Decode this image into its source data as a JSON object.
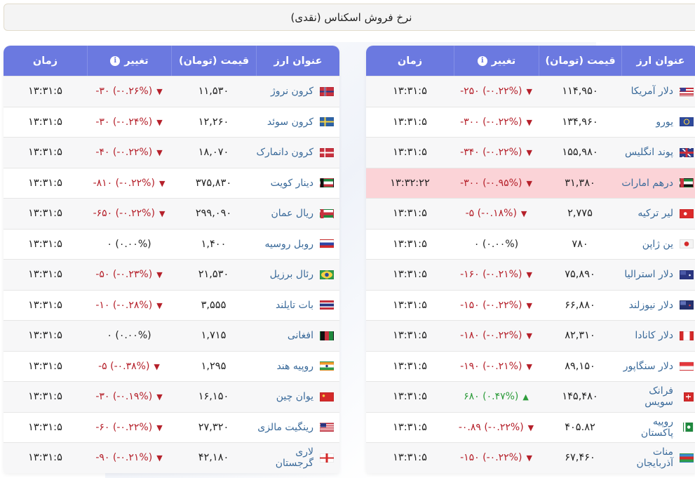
{
  "title": "نرخ فروش اسکناس (نقدی)",
  "colors": {
    "header_bg": "#6b79e0",
    "negative": "#b5202a",
    "positive": "#2e9c3c",
    "highlight_row": "#fbd3d7",
    "name_link": "#3a6a9a"
  },
  "columns": {
    "name": "عنوان ارز",
    "price": "قیمت (تومان)",
    "change": "تغییر",
    "change_icon": "i",
    "time": "زمان"
  },
  "right_table": {
    "rows": [
      {
        "flag": "us",
        "name": "دلار آمریکا",
        "price": "۱۱۴,۹۵۰",
        "change": "-۲۵۰ (-۰.۲۲%)",
        "dir": "neg",
        "time": "۱۳:۳۱:۵"
      },
      {
        "flag": "eu",
        "name": "یورو",
        "price": "۱۳۴,۹۶۰",
        "change": "-۳۰۰ (-۰.۲۲%)",
        "dir": "neg",
        "time": "۱۳:۳۱:۵"
      },
      {
        "flag": "gb",
        "name": "پوند انگلیس",
        "price": "۱۵۵,۹۸۰",
        "change": "-۳۴۰ (-۰.۲۲%)",
        "dir": "neg",
        "time": "۱۳:۳۱:۵"
      },
      {
        "flag": "ae",
        "name": "درهم امارات",
        "price": "۳۱,۳۸۰",
        "change": "-۳۰۰ (-۰.۹۵%)",
        "dir": "neg",
        "time": "۱۳:۳۲:۲۲",
        "highlight": true
      },
      {
        "flag": "tr",
        "name": "لیر ترکیه",
        "price": "۲,۷۷۵",
        "change": "-۵ (-۰.۱۸%)",
        "dir": "neg",
        "time": "۱۳:۳۱:۵"
      },
      {
        "flag": "jp",
        "name": "ین ژاپن",
        "price": "۷۸۰",
        "change": "۰ (۰.۰۰%)",
        "dir": "zero",
        "time": "۱۳:۳۱:۵"
      },
      {
        "flag": "au",
        "name": "دلار استرالیا",
        "price": "۷۵,۸۹۰",
        "change": "-۱۶۰ (-۰.۲۱%)",
        "dir": "neg",
        "time": "۱۳:۳۱:۵"
      },
      {
        "flag": "nz",
        "name": "دلار نیوزلند",
        "price": "۶۶,۸۸۰",
        "change": "-۱۵۰ (-۰.۲۲%)",
        "dir": "neg",
        "time": "۱۳:۳۱:۵"
      },
      {
        "flag": "ca",
        "name": "دلار کانادا",
        "price": "۸۲,۳۱۰",
        "change": "-۱۸۰ (-۰.۲۲%)",
        "dir": "neg",
        "time": "۱۳:۳۱:۵"
      },
      {
        "flag": "sg",
        "name": "دلار سنگاپور",
        "price": "۸۹,۱۵۰",
        "change": "-۱۹۰ (-۰.۲۱%)",
        "dir": "neg",
        "time": "۱۳:۳۱:۵"
      },
      {
        "flag": "ch",
        "name": "فرانک سویس",
        "price": "۱۴۵,۴۸۰",
        "change": "۶۸۰ (۰.۴۷%)",
        "dir": "pos",
        "time": "۱۳:۳۱:۵"
      },
      {
        "flag": "pk",
        "name": "روپیه پاکستان",
        "price": "۴۰۵.۸۲",
        "change": "-۰.۸۹ (-۰.۲۲%)",
        "dir": "neg",
        "time": "۱۳:۳۱:۵"
      },
      {
        "flag": "az",
        "name": "منات آذربایجان",
        "price": "۶۷,۴۶۰",
        "change": "-۱۵۰ (-۰.۲۲%)",
        "dir": "neg",
        "time": "۱۳:۳۱:۵"
      }
    ]
  },
  "left_table": {
    "rows": [
      {
        "flag": "no",
        "name": "کرون نروژ",
        "price": "۱۱,۵۳۰",
        "change": "-۳۰ (-۰.۲۶%)",
        "dir": "neg",
        "time": "۱۳:۳۱:۵"
      },
      {
        "flag": "se",
        "name": "کرون سوئد",
        "price": "۱۲,۲۶۰",
        "change": "-۳۰ (-۰.۲۴%)",
        "dir": "neg",
        "time": "۱۳:۳۱:۵"
      },
      {
        "flag": "dk",
        "name": "کرون دانمارک",
        "price": "۱۸,۰۷۰",
        "change": "-۴۰ (-۰.۲۲%)",
        "dir": "neg",
        "time": "۱۳:۳۱:۵"
      },
      {
        "flag": "kw",
        "name": "دینار کویت",
        "price": "۳۷۵,۸۳۰",
        "change": "-۸۱۰ (-۰.۲۲%)",
        "dir": "neg",
        "time": "۱۳:۳۱:۵"
      },
      {
        "flag": "om",
        "name": "ریال عمان",
        "price": "۲۹۹,۰۹۰",
        "change": "-۶۵۰ (-۰.۲۲%)",
        "dir": "neg",
        "time": "۱۳:۳۱:۵"
      },
      {
        "flag": "ru",
        "name": "روبل روسیه",
        "price": "۱,۴۰۰",
        "change": "۰ (۰.۰۰%)",
        "dir": "zero",
        "time": "۱۳:۳۱:۵"
      },
      {
        "flag": "br",
        "name": "رئال برزیل",
        "price": "۲۱,۵۳۰",
        "change": "-۵۰ (-۰.۲۳%)",
        "dir": "neg",
        "time": "۱۳:۳۱:۵"
      },
      {
        "flag": "th",
        "name": "بات تایلند",
        "price": "۳,۵۵۵",
        "change": "-۱۰ (-۰.۲۸%)",
        "dir": "neg",
        "time": "۱۳:۳۱:۵"
      },
      {
        "flag": "af",
        "name": "افغانی",
        "price": "۱,۷۱۵",
        "change": "۰ (۰.۰۰%)",
        "dir": "zero",
        "time": "۱۳:۳۱:۵"
      },
      {
        "flag": "in",
        "name": "روپیه هند",
        "price": "۱,۲۹۵",
        "change": "-۵ (-۰.۳۸%)",
        "dir": "neg",
        "time": "۱۳:۳۱:۵"
      },
      {
        "flag": "cn",
        "name": "یوان چین",
        "price": "۱۶,۱۵۰",
        "change": "-۳۰ (-۰.۱۹%)",
        "dir": "neg",
        "time": "۱۳:۳۱:۵"
      },
      {
        "flag": "my",
        "name": "رینگیت مالزی",
        "price": "۲۷,۳۲۰",
        "change": "-۶۰ (-۰.۲۲%)",
        "dir": "neg",
        "time": "۱۳:۳۱:۵"
      },
      {
        "flag": "ge",
        "name": "لاری گرجستان",
        "price": "۴۲,۱۸۰",
        "change": "-۹۰ (-۰.۲۱%)",
        "dir": "neg",
        "time": "۱۳:۳۱:۵"
      }
    ]
  },
  "icons": {
    "down": "▼",
    "up": "▲",
    "info": "info-circle-icon"
  }
}
